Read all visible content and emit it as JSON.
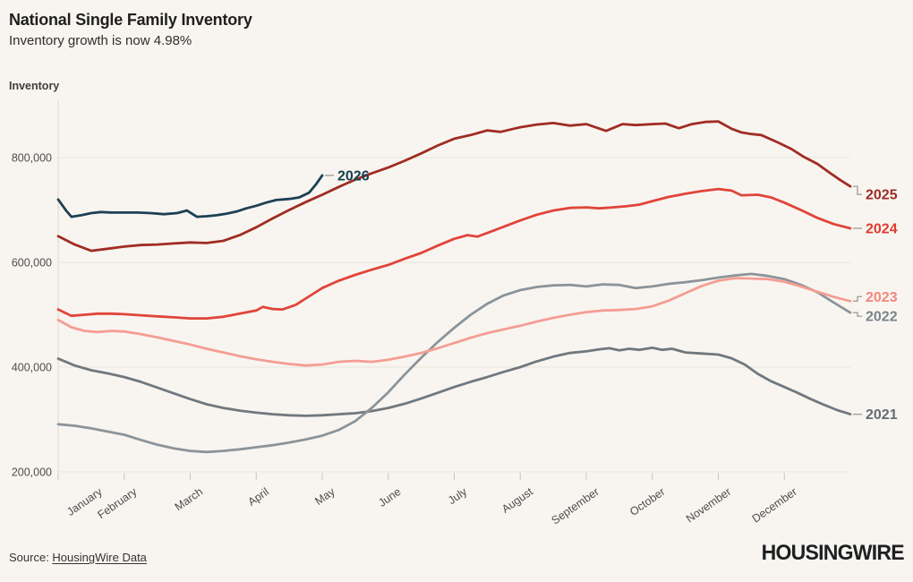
{
  "header": {
    "title": "National Single Family Inventory",
    "subtitle": "Inventory growth is now 4.98%"
  },
  "footer": {
    "source_prefix": "Source: ",
    "source_link": "HousingWire Data",
    "brand": "HOUSINGWIRE"
  },
  "chart_data": {
    "type": "line",
    "title": "National Single Family Inventory",
    "subtitle": "Inventory growth is now 4.98%",
    "ylabel": "Inventory",
    "grid": true,
    "legend_position": "line-end-labels",
    "y_axis": {
      "tick_values": [
        200000,
        400000,
        600000,
        800000
      ],
      "tick_labels": [
        "200,000",
        "400,000",
        "600,000",
        "800,000"
      ],
      "range": [
        200000,
        890000
      ]
    },
    "x_axis": {
      "tick_labels": [
        "January",
        "February",
        "March",
        "April",
        "May",
        "June",
        "July",
        "August",
        "September",
        "October",
        "November",
        "December"
      ],
      "range_months": [
        0,
        12
      ]
    },
    "series": [
      {
        "name": "2021",
        "color": "#70787e",
        "label_color": "#646c72",
        "label_dy": 0,
        "points_month_thousands": [
          [
            0,
            416
          ],
          [
            0.25,
            403
          ],
          [
            0.5,
            394
          ],
          [
            0.75,
            388
          ],
          [
            1,
            381
          ],
          [
            1.25,
            372
          ],
          [
            1.5,
            361
          ],
          [
            1.75,
            350
          ],
          [
            2,
            339
          ],
          [
            2.25,
            329
          ],
          [
            2.5,
            322
          ],
          [
            2.75,
            317
          ],
          [
            3,
            313
          ],
          [
            3.25,
            310
          ],
          [
            3.5,
            308
          ],
          [
            3.75,
            307
          ],
          [
            4,
            308
          ],
          [
            4.25,
            310
          ],
          [
            4.5,
            312
          ],
          [
            4.75,
            316
          ],
          [
            5,
            322
          ],
          [
            5.25,
            330
          ],
          [
            5.5,
            340
          ],
          [
            5.75,
            351
          ],
          [
            6,
            362
          ],
          [
            6.25,
            372
          ],
          [
            6.5,
            381
          ],
          [
            6.75,
            391
          ],
          [
            7,
            400
          ],
          [
            7.25,
            411
          ],
          [
            7.5,
            420
          ],
          [
            7.75,
            427
          ],
          [
            8,
            430
          ],
          [
            8.2,
            434
          ],
          [
            8.35,
            436
          ],
          [
            8.5,
            432
          ],
          [
            8.65,
            435
          ],
          [
            8.8,
            433
          ],
          [
            9,
            437
          ],
          [
            9.15,
            433
          ],
          [
            9.3,
            435
          ],
          [
            9.5,
            428
          ],
          [
            9.75,
            426
          ],
          [
            10,
            424
          ],
          [
            10.2,
            417
          ],
          [
            10.4,
            405
          ],
          [
            10.6,
            387
          ],
          [
            10.8,
            373
          ],
          [
            11,
            362
          ],
          [
            11.2,
            351
          ],
          [
            11.4,
            339
          ],
          [
            11.6,
            328
          ],
          [
            11.8,
            318
          ],
          [
            12,
            310
          ]
        ]
      },
      {
        "name": "2022",
        "color": "#8b949a",
        "label_color": "#7b848b",
        "label_dy": 4,
        "points_month_thousands": [
          [
            0,
            291
          ],
          [
            0.25,
            288
          ],
          [
            0.5,
            283
          ],
          [
            0.75,
            277
          ],
          [
            1,
            271
          ],
          [
            1.25,
            261
          ],
          [
            1.5,
            252
          ],
          [
            1.75,
            245
          ],
          [
            2,
            240
          ],
          [
            2.25,
            238
          ],
          [
            2.5,
            240
          ],
          [
            2.75,
            243
          ],
          [
            3,
            247
          ],
          [
            3.25,
            251
          ],
          [
            3.5,
            256
          ],
          [
            3.75,
            262
          ],
          [
            4,
            269
          ],
          [
            4.25,
            280
          ],
          [
            4.5,
            297
          ],
          [
            4.75,
            322
          ],
          [
            5,
            352
          ],
          [
            5.25,
            386
          ],
          [
            5.5,
            418
          ],
          [
            5.75,
            448
          ],
          [
            6,
            475
          ],
          [
            6.25,
            500
          ],
          [
            6.5,
            521
          ],
          [
            6.75,
            537
          ],
          [
            7,
            547
          ],
          [
            7.25,
            553
          ],
          [
            7.5,
            556
          ],
          [
            7.75,
            557
          ],
          [
            8,
            554
          ],
          [
            8.25,
            558
          ],
          [
            8.5,
            557
          ],
          [
            8.75,
            551
          ],
          [
            9,
            554
          ],
          [
            9.25,
            559
          ],
          [
            9.5,
            562
          ],
          [
            9.75,
            566
          ],
          [
            10,
            571
          ],
          [
            10.25,
            575
          ],
          [
            10.5,
            578
          ],
          [
            10.75,
            574
          ],
          [
            11,
            568
          ],
          [
            11.25,
            557
          ],
          [
            11.5,
            543
          ],
          [
            11.75,
            523
          ],
          [
            12,
            504
          ]
        ]
      },
      {
        "name": "2023",
        "color": "#f59d93",
        "label_color": "#f4867c",
        "label_dy": -5,
        "points_month_thousands": [
          [
            0,
            490
          ],
          [
            0.2,
            476
          ],
          [
            0.4,
            469
          ],
          [
            0.6,
            467
          ],
          [
            0.8,
            469
          ],
          [
            1,
            468
          ],
          [
            1.25,
            463
          ],
          [
            1.5,
            457
          ],
          [
            1.75,
            450
          ],
          [
            2,
            443
          ],
          [
            2.25,
            435
          ],
          [
            2.5,
            428
          ],
          [
            2.75,
            421
          ],
          [
            3,
            415
          ],
          [
            3.25,
            410
          ],
          [
            3.5,
            406
          ],
          [
            3.75,
            403
          ],
          [
            4,
            405
          ],
          [
            4.25,
            410
          ],
          [
            4.5,
            412
          ],
          [
            4.75,
            410
          ],
          [
            5,
            414
          ],
          [
            5.25,
            420
          ],
          [
            5.5,
            427
          ],
          [
            5.75,
            436
          ],
          [
            6,
            446
          ],
          [
            6.25,
            456
          ],
          [
            6.5,
            465
          ],
          [
            6.75,
            472
          ],
          [
            7,
            479
          ],
          [
            7.25,
            487
          ],
          [
            7.5,
            494
          ],
          [
            7.75,
            500
          ],
          [
            8,
            505
          ],
          [
            8.25,
            508
          ],
          [
            8.5,
            509
          ],
          [
            8.75,
            511
          ],
          [
            9,
            516
          ],
          [
            9.25,
            527
          ],
          [
            9.5,
            541
          ],
          [
            9.75,
            555
          ],
          [
            10,
            565
          ],
          [
            10.25,
            570
          ],
          [
            10.5,
            569
          ],
          [
            10.75,
            568
          ],
          [
            11,
            563
          ],
          [
            11.25,
            554
          ],
          [
            11.5,
            544
          ],
          [
            11.75,
            534
          ],
          [
            12,
            526
          ]
        ]
      },
      {
        "name": "2024",
        "color": "#e1443a",
        "label_color": "#e03a2f",
        "label_dy": 0,
        "points_month_thousands": [
          [
            0,
            510
          ],
          [
            0.2,
            498
          ],
          [
            0.4,
            500
          ],
          [
            0.6,
            502
          ],
          [
            0.8,
            502
          ],
          [
            1,
            501
          ],
          [
            1.25,
            499
          ],
          [
            1.5,
            497
          ],
          [
            1.75,
            495
          ],
          [
            2,
            493
          ],
          [
            2.25,
            493
          ],
          [
            2.5,
            496
          ],
          [
            2.75,
            502
          ],
          [
            3,
            508
          ],
          [
            3.1,
            515
          ],
          [
            3.25,
            511
          ],
          [
            3.4,
            510
          ],
          [
            3.6,
            519
          ],
          [
            3.8,
            535
          ],
          [
            4,
            551
          ],
          [
            4.25,
            565
          ],
          [
            4.5,
            576
          ],
          [
            4.75,
            586
          ],
          [
            5,
            595
          ],
          [
            5.25,
            607
          ],
          [
            5.5,
            618
          ],
          [
            5.75,
            632
          ],
          [
            6,
            645
          ],
          [
            6.2,
            652
          ],
          [
            6.35,
            649
          ],
          [
            6.5,
            656
          ],
          [
            6.75,
            668
          ],
          [
            7,
            680
          ],
          [
            7.25,
            691
          ],
          [
            7.5,
            699
          ],
          [
            7.75,
            704
          ],
          [
            8,
            705
          ],
          [
            8.2,
            703
          ],
          [
            8.4,
            705
          ],
          [
            8.6,
            707
          ],
          [
            8.8,
            710
          ],
          [
            9,
            717
          ],
          [
            9.25,
            725
          ],
          [
            9.5,
            731
          ],
          [
            9.75,
            736
          ],
          [
            10,
            740
          ],
          [
            10.2,
            737
          ],
          [
            10.35,
            728
          ],
          [
            10.6,
            729
          ],
          [
            10.8,
            724
          ],
          [
            11,
            714
          ],
          [
            11.25,
            700
          ],
          [
            11.5,
            685
          ],
          [
            11.75,
            673
          ],
          [
            12,
            665
          ]
        ]
      },
      {
        "name": "2025",
        "color": "#a02c24",
        "label_color": "#9b2b23",
        "label_dy": 9,
        "points_month_thousands": [
          [
            0,
            650
          ],
          [
            0.25,
            634
          ],
          [
            0.5,
            622
          ],
          [
            0.75,
            626
          ],
          [
            1,
            630
          ],
          [
            1.25,
            633
          ],
          [
            1.5,
            634
          ],
          [
            1.75,
            636
          ],
          [
            2,
            638
          ],
          [
            2.25,
            637
          ],
          [
            2.5,
            641
          ],
          [
            2.75,
            652
          ],
          [
            3,
            667
          ],
          [
            3.25,
            684
          ],
          [
            3.5,
            700
          ],
          [
            3.75,
            715
          ],
          [
            4,
            729
          ],
          [
            4.25,
            744
          ],
          [
            4.5,
            758
          ],
          [
            4.75,
            770
          ],
          [
            5,
            781
          ],
          [
            5.25,
            794
          ],
          [
            5.5,
            808
          ],
          [
            5.75,
            823
          ],
          [
            6,
            836
          ],
          [
            6.25,
            843
          ],
          [
            6.5,
            852
          ],
          [
            6.7,
            849
          ],
          [
            6.9,
            855
          ],
          [
            7,
            858
          ],
          [
            7.25,
            863
          ],
          [
            7.5,
            866
          ],
          [
            7.75,
            861
          ],
          [
            8,
            864
          ],
          [
            8.3,
            851
          ],
          [
            8.55,
            864
          ],
          [
            8.75,
            862
          ],
          [
            9,
            864
          ],
          [
            9.2,
            865
          ],
          [
            9.4,
            856
          ],
          [
            9.6,
            864
          ],
          [
            9.8,
            868
          ],
          [
            10,
            869
          ],
          [
            10.2,
            855
          ],
          [
            10.35,
            848
          ],
          [
            10.5,
            845
          ],
          [
            10.65,
            843
          ],
          [
            10.9,
            829
          ],
          [
            11.1,
            817
          ],
          [
            11.3,
            801
          ],
          [
            11.5,
            788
          ],
          [
            11.7,
            770
          ],
          [
            11.85,
            757
          ],
          [
            12,
            745
          ]
        ]
      },
      {
        "name": "2026",
        "color": "#1c4053",
        "label_color": "#14404f",
        "label_dy": 0,
        "points_month_thousands": [
          [
            0,
            720
          ],
          [
            0.12,
            699
          ],
          [
            0.2,
            687
          ],
          [
            0.35,
            690
          ],
          [
            0.5,
            694
          ],
          [
            0.65,
            696
          ],
          [
            0.8,
            695
          ],
          [
            1,
            695
          ],
          [
            1.2,
            695
          ],
          [
            1.4,
            694
          ],
          [
            1.6,
            692
          ],
          [
            1.8,
            694
          ],
          [
            1.95,
            699
          ],
          [
            2.1,
            687
          ],
          [
            2.25,
            688
          ],
          [
            2.4,
            690
          ],
          [
            2.55,
            693
          ],
          [
            2.7,
            697
          ],
          [
            2.85,
            703
          ],
          [
            3,
            708
          ],
          [
            3.15,
            714
          ],
          [
            3.3,
            719
          ],
          [
            3.5,
            721
          ],
          [
            3.65,
            724
          ],
          [
            3.8,
            733
          ],
          [
            3.9,
            748
          ],
          [
            4,
            766
          ]
        ]
      }
    ]
  }
}
